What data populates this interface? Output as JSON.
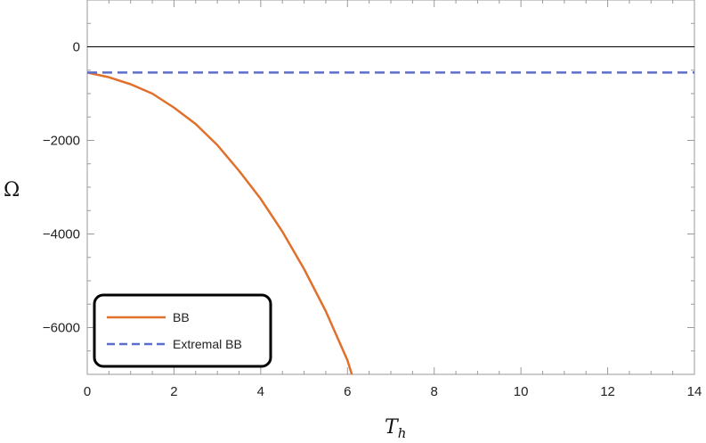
{
  "chart_data": {
    "type": "line",
    "xlabel": "T",
    "xlabel_subscript": "h",
    "ylabel": "Ω",
    "xlim": [
      0,
      14
    ],
    "ylim": [
      -7000,
      1000
    ],
    "xticks": [
      0,
      2,
      4,
      6,
      8,
      10,
      12,
      14
    ],
    "yticks": [
      0,
      -2000,
      -4000,
      -6000
    ],
    "ytick_labels": [
      "0",
      "−2000",
      "−4000",
      "−6000"
    ],
    "grid": false,
    "zero_line": true,
    "legend_position": "bottom-left",
    "series": [
      {
        "name": "BB",
        "style": "solid",
        "color": "#e0702b",
        "x": [
          0,
          0.5,
          1,
          1.5,
          2,
          2.5,
          3,
          3.5,
          4,
          4.5,
          5,
          5.5,
          6,
          6.1
        ],
        "y": [
          -550,
          -650,
          -800,
          -1000,
          -1300,
          -1650,
          -2100,
          -2650,
          -3250,
          -3950,
          -4750,
          -5650,
          -6700,
          -7000
        ]
      },
      {
        "name": "Extremal BB",
        "style": "dashed",
        "color": "#5b6fc9",
        "x": [
          0,
          14
        ],
        "y": [
          -550,
          -550
        ]
      }
    ]
  }
}
